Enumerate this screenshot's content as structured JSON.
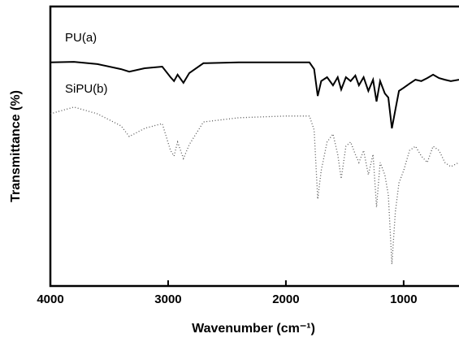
{
  "chart_data": {
    "type": "line",
    "x_label": "Wavenumber (cm⁻¹)",
    "y_label": "Transmittance (%)",
    "x": [
      4000,
      3800,
      3600,
      3400,
      3330,
      3200,
      3050,
      2980,
      2950,
      2920,
      2870,
      2820,
      2700,
      2400,
      2000,
      1800,
      1760,
      1730,
      1700,
      1650,
      1600,
      1560,
      1530,
      1490,
      1450,
      1410,
      1380,
      1340,
      1300,
      1260,
      1230,
      1200,
      1160,
      1130,
      1100,
      1070,
      1040,
      1000,
      950,
      900,
      850,
      800,
      750,
      700,
      650,
      600,
      530
    ],
    "series": [
      {
        "name": "PU(a)",
        "color": "#000000",
        "line_style": "solid",
        "values": [
          80,
          80.2,
          79.4,
          77.6,
          76.7,
          77.9,
          78.5,
          74.7,
          73.3,
          75.6,
          72.7,
          76.2,
          79.7,
          80,
          80,
          80,
          77.6,
          68,
          73.3,
          74.7,
          71.8,
          74.7,
          70.3,
          74.7,
          73.3,
          75.3,
          71.8,
          74.7,
          69.8,
          73.8,
          66,
          73.3,
          68.9,
          67.4,
          56.4,
          63.1,
          69.8,
          70.9,
          72.4,
          73.8,
          73.3,
          74.4,
          75.6,
          74.4,
          73.8,
          73.3,
          73.8
        ]
      },
      {
        "name": "SiPU(b)",
        "color": "#555555",
        "line_style": "dotted",
        "values": [
          61.6,
          64,
          61.6,
          57.3,
          53.5,
          56.4,
          58.1,
          48.5,
          46.5,
          51.5,
          45.6,
          50.6,
          58.7,
          60.2,
          60.8,
          60.8,
          55.8,
          31.1,
          41.3,
          51.5,
          54.4,
          47.1,
          38.4,
          50,
          51.5,
          47.1,
          44.2,
          48.5,
          39.8,
          47.1,
          28.2,
          44.2,
          39.8,
          32.6,
          7.8,
          26.7,
          36.9,
          41.3,
          48.5,
          50,
          46.5,
          44.2,
          50,
          48.5,
          44.2,
          42.7,
          44.2
        ]
      }
    ],
    "xlim": [
      4000,
      530
    ],
    "xticks": [
      4000,
      3000,
      2000,
      1000
    ],
    "ylim": [
      0,
      100
    ],
    "grid": false
  }
}
